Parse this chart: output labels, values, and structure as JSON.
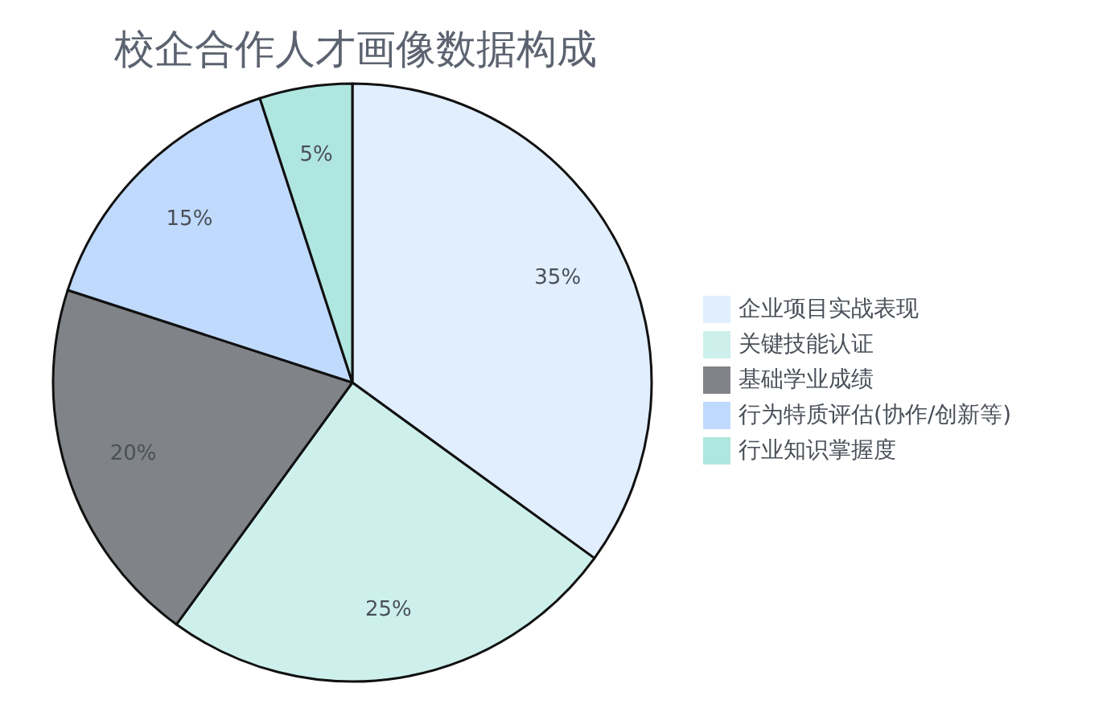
{
  "chart_data": {
    "type": "pie",
    "title": "校企合作人才画像数据构成",
    "categories": [
      "企业项目实战表现",
      "关键技能认证",
      "基础学业成绩",
      "行为特质评估(协作/创新等)",
      "行业知识掌握度"
    ],
    "values": [
      35,
      25,
      20,
      15,
      5
    ],
    "value_labels": [
      "35%",
      "25%",
      "20%",
      "15%",
      "5%"
    ],
    "colors": [
      "#e0eefe",
      "#cdf0ec",
      "#808489",
      "#c0dafd",
      "#b0e6e0"
    ],
    "legend": "right"
  }
}
